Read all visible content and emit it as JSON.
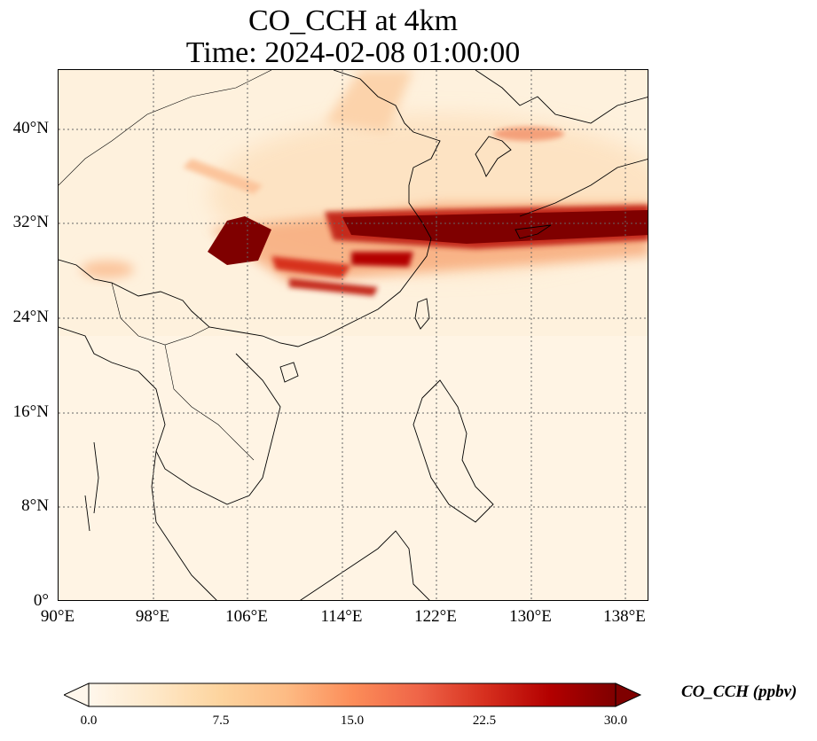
{
  "title": {
    "line1": "CO_CCH at 4km",
    "line2": "Time: 2024-02-08 01:00:00"
  },
  "map": {
    "projection": "PlateCarree",
    "extent": {
      "lon": [
        90,
        140
      ],
      "lat": [
        0,
        45
      ]
    },
    "gridlines": "dotted",
    "coastlines": true,
    "borders": true
  },
  "axes": {
    "lat_ticks": [
      "40°N",
      "32°N",
      "24°N",
      "16°N",
      "8°N",
      "0°"
    ],
    "lon_ticks": [
      "90°E",
      "98°E",
      "106°E",
      "114°E",
      "122°E",
      "130°E",
      "138°E"
    ]
  },
  "colorbar": {
    "label": "CO_CCH (ppbv)",
    "ticks": [
      "0.0",
      "7.5",
      "15.0",
      "22.5",
      "30.0"
    ],
    "range": [
      0,
      30
    ],
    "extend": "both",
    "colormap": "OrRd",
    "colors": [
      "#fff7ec",
      "#fee8c8",
      "#fdd49e",
      "#fdbb84",
      "#fc8d59",
      "#ef6548",
      "#d7301f",
      "#b30000",
      "#7f0000"
    ]
  }
}
